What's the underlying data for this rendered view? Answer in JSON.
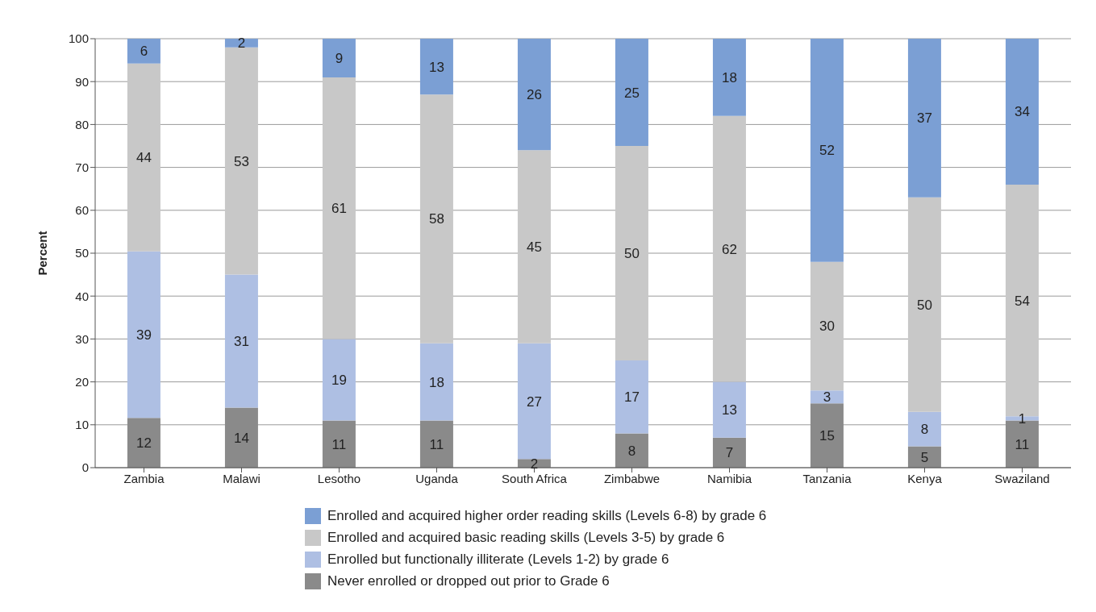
{
  "chart_data": {
    "type": "bar",
    "stacked": true,
    "ylabel": "Percent",
    "categories": [
      "Zambia",
      "Malawi",
      "Lesotho",
      "Uganda",
      "South Africa",
      "Zimbabwe",
      "Namibia",
      "Tanzania",
      "Kenya",
      "Swaziland"
    ],
    "series": [
      {
        "name": "Never enrolled or dropped out prior to Grade 6",
        "color": "#8a8a8a",
        "values": [
          11.6,
          14,
          11,
          11,
          2,
          8,
          7,
          15,
          5,
          11
        ],
        "value_labels": [
          "12",
          "14",
          "11",
          "11",
          "2",
          "8",
          "7",
          "15",
          "5",
          "11"
        ]
      },
      {
        "name": "Enrolled but functionally illiterate (Levels 1-2) by grade 6",
        "color": "#aebfe3",
        "values": [
          38.8,
          31,
          19,
          18,
          27,
          17,
          13,
          3,
          8,
          1
        ],
        "value_labels": [
          "39",
          "31",
          "19",
          "18",
          "27",
          "17",
          "13",
          "3",
          "8",
          "1"
        ]
      },
      {
        "name": "Enrolled and acquired basic reading skills (Levels 3-5) by grade 6",
        "color": "#c8c8c8",
        "values": [
          43.8,
          53,
          61,
          58,
          45,
          50,
          62,
          30,
          50,
          54
        ],
        "value_labels": [
          "44",
          "53",
          "61",
          "58",
          "45",
          "50",
          "62",
          "30",
          "50",
          "54"
        ]
      },
      {
        "name": "Enrolled and acquired higher order reading skills (Levels 6-8) by grade 6",
        "color": "#7b9fd4",
        "values": [
          5.8,
          2,
          9,
          13,
          26,
          25,
          18,
          52,
          37,
          34
        ],
        "value_labels": [
          "6",
          "2",
          "9",
          "13",
          "26",
          "25",
          "18",
          "52",
          "37",
          "34"
        ]
      }
    ],
    "ylim": [
      0,
      100
    ],
    "yticks": [
      0,
      10,
      20,
      30,
      40,
      50,
      60,
      70,
      80,
      90,
      100
    ],
    "grid": "y",
    "legend": "bottom"
  }
}
